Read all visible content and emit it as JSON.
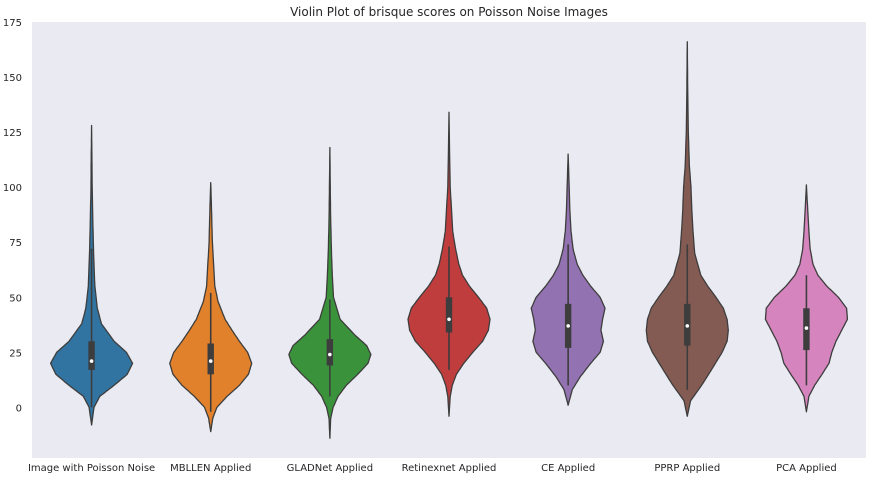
{
  "chart_data": {
    "type": "violin",
    "title": "Violin Plot of brisque scores on Poisson Noise Images",
    "xlabel": "",
    "ylabel": "",
    "ylim": [
      -23,
      175
    ],
    "yticks": [
      0,
      25,
      50,
      75,
      100,
      125,
      150,
      175
    ],
    "grid": false,
    "background": "#eaeaf2",
    "categories": [
      "Image with Poisson Noise",
      "MBLLEN Applied",
      "GLADNet Applied",
      "Retinexnet Applied",
      "CE Applied",
      "PPRP Applied",
      "PCA Applied"
    ],
    "series": [
      {
        "color": "#3274a1",
        "min": -8,
        "max": 128,
        "q1": 17,
        "median": 21,
        "q3": 30,
        "whisker_low": 0,
        "whisker_high": 72,
        "profile": [
          [
            -8,
            0
          ],
          [
            0,
            0.06
          ],
          [
            5,
            0.2
          ],
          [
            10,
            0.55
          ],
          [
            15,
            0.87
          ],
          [
            20,
            1.0
          ],
          [
            25,
            0.85
          ],
          [
            30,
            0.55
          ],
          [
            38,
            0.24
          ],
          [
            45,
            0.14
          ],
          [
            55,
            0.08
          ],
          [
            70,
            0.05
          ],
          [
            85,
            0.03
          ],
          [
            100,
            0.015
          ],
          [
            115,
            0.008
          ],
          [
            128,
            0
          ]
        ]
      },
      {
        "color": "#e1812c",
        "min": -11,
        "max": 102,
        "q1": 15,
        "median": 21,
        "q3": 29,
        "whisker_low": -2,
        "whisker_high": 52,
        "profile": [
          [
            -11,
            0
          ],
          [
            -5,
            0.05
          ],
          [
            0,
            0.15
          ],
          [
            5,
            0.4
          ],
          [
            10,
            0.7
          ],
          [
            15,
            0.92
          ],
          [
            20,
            1.0
          ],
          [
            25,
            0.9
          ],
          [
            30,
            0.7
          ],
          [
            35,
            0.52
          ],
          [
            40,
            0.35
          ],
          [
            48,
            0.18
          ],
          [
            55,
            0.1
          ],
          [
            65,
            0.07
          ],
          [
            75,
            0.04
          ],
          [
            90,
            0.02
          ],
          [
            102,
            0
          ]
        ]
      },
      {
        "color": "#3a923a",
        "min": -14,
        "max": 118,
        "q1": 19,
        "median": 24,
        "q3": 31,
        "whisker_low": 5,
        "whisker_high": 49,
        "profile": [
          [
            -14,
            0
          ],
          [
            -5,
            0.02
          ],
          [
            0,
            0.08
          ],
          [
            5,
            0.2
          ],
          [
            10,
            0.4
          ],
          [
            15,
            0.68
          ],
          [
            20,
            0.93
          ],
          [
            24,
            1.0
          ],
          [
            28,
            0.9
          ],
          [
            33,
            0.6
          ],
          [
            40,
            0.25
          ],
          [
            50,
            0.09
          ],
          [
            60,
            0.06
          ],
          [
            70,
            0.04
          ],
          [
            85,
            0.02
          ],
          [
            100,
            0.01
          ],
          [
            118,
            0
          ]
        ]
      },
      {
        "color": "#c03d3e",
        "min": -4,
        "max": 134,
        "q1": 34,
        "median": 40,
        "q3": 50,
        "whisker_low": 17,
        "whisker_high": 73,
        "profile": [
          [
            -4,
            0
          ],
          [
            5,
            0.03
          ],
          [
            10,
            0.08
          ],
          [
            15,
            0.18
          ],
          [
            20,
            0.36
          ],
          [
            25,
            0.58
          ],
          [
            30,
            0.82
          ],
          [
            35,
            0.96
          ],
          [
            40,
            1.0
          ],
          [
            45,
            0.92
          ],
          [
            50,
            0.72
          ],
          [
            55,
            0.5
          ],
          [
            60,
            0.33
          ],
          [
            65,
            0.24
          ],
          [
            72,
            0.16
          ],
          [
            80,
            0.09
          ],
          [
            90,
            0.06
          ],
          [
            100,
            0.03
          ],
          [
            115,
            0.015
          ],
          [
            134,
            0
          ]
        ]
      },
      {
        "color": "#9372b2",
        "min": 1,
        "max": 115,
        "q1": 27,
        "median": 37,
        "q3": 47,
        "whisker_low": 10,
        "whisker_high": 74,
        "profile": [
          [
            1,
            0
          ],
          [
            8,
            0.1
          ],
          [
            14,
            0.3
          ],
          [
            20,
            0.55
          ],
          [
            25,
            0.78
          ],
          [
            30,
            0.86
          ],
          [
            35,
            0.8
          ],
          [
            40,
            0.84
          ],
          [
            45,
            0.9
          ],
          [
            50,
            0.78
          ],
          [
            55,
            0.55
          ],
          [
            60,
            0.36
          ],
          [
            65,
            0.22
          ],
          [
            72,
            0.12
          ],
          [
            80,
            0.07
          ],
          [
            90,
            0.04
          ],
          [
            100,
            0.025
          ],
          [
            115,
            0
          ]
        ]
      },
      {
        "color": "#845b53",
        "min": -4,
        "max": 166,
        "q1": 28,
        "median": 37,
        "q3": 47,
        "whisker_low": 8,
        "whisker_high": 74,
        "profile": [
          [
            -4,
            0
          ],
          [
            3,
            0.08
          ],
          [
            10,
            0.35
          ],
          [
            18,
            0.62
          ],
          [
            25,
            0.85
          ],
          [
            30,
            0.97
          ],
          [
            35,
            1.0
          ],
          [
            40,
            0.97
          ],
          [
            45,
            0.88
          ],
          [
            50,
            0.7
          ],
          [
            55,
            0.5
          ],
          [
            60,
            0.33
          ],
          [
            70,
            0.18
          ],
          [
            80,
            0.14
          ],
          [
            90,
            0.11
          ],
          [
            100,
            0.09
          ],
          [
            110,
            0.05
          ],
          [
            125,
            0.025
          ],
          [
            145,
            0.01
          ],
          [
            166,
            0
          ]
        ]
      },
      {
        "color": "#d684bd",
        "min": -2,
        "max": 101,
        "q1": 26,
        "median": 36,
        "q3": 45,
        "whisker_low": 10,
        "whisker_high": 60,
        "profile": [
          [
            -2,
            0
          ],
          [
            5,
            0.06
          ],
          [
            10,
            0.2
          ],
          [
            15,
            0.38
          ],
          [
            20,
            0.55
          ],
          [
            25,
            0.62
          ],
          [
            30,
            0.72
          ],
          [
            35,
            0.86
          ],
          [
            40,
            1.0
          ],
          [
            45,
            0.98
          ],
          [
            50,
            0.78
          ],
          [
            55,
            0.5
          ],
          [
            60,
            0.28
          ],
          [
            65,
            0.16
          ],
          [
            72,
            0.09
          ],
          [
            80,
            0.06
          ],
          [
            90,
            0.03
          ],
          [
            101,
            0
          ]
        ]
      }
    ]
  }
}
